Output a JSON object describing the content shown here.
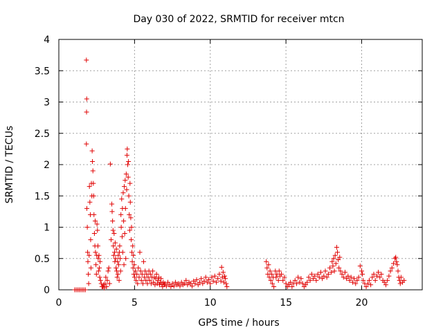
{
  "chart_data": {
    "type": "scatter",
    "title": "Day 030 of 2022, SRMTID for receiver mtcn",
    "xlabel": "GPS time / hours",
    "ylabel": "SRMTID / TECUs",
    "xlim": [
      0,
      24
    ],
    "ylim": [
      0,
      4
    ],
    "xticks": [
      0,
      5,
      10,
      15,
      20
    ],
    "xtick_labels": [
      "0",
      "5",
      "10",
      "15",
      "20"
    ],
    "yticks": [
      0,
      0.5,
      1,
      1.5,
      2,
      2.5,
      3,
      3.5,
      4
    ],
    "ytick_labels": [
      "0",
      "0.5",
      "1",
      "1.5",
      "2",
      "2.5",
      "3",
      "3.5",
      "4"
    ],
    "grid": true,
    "marker": "plus",
    "color": "#e00000",
    "series": [
      {
        "name": "mtcn",
        "points": [
          [
            1.05,
            0.0
          ],
          [
            1.15,
            0.0
          ],
          [
            1.25,
            0.0
          ],
          [
            1.35,
            0.0
          ],
          [
            1.45,
            0.0
          ],
          [
            1.55,
            0.0
          ],
          [
            1.65,
            0.0
          ],
          [
            1.75,
            0.0
          ],
          [
            1.82,
            3.67
          ],
          [
            1.84,
            3.05
          ],
          [
            1.83,
            2.84
          ],
          [
            1.82,
            2.33
          ],
          [
            1.85,
            1.3
          ],
          [
            1.88,
            1.0
          ],
          [
            1.9,
            0.6
          ],
          [
            1.92,
            0.45
          ],
          [
            1.95,
            0.25
          ],
          [
            1.97,
            0.1
          ],
          [
            2.0,
            0.55
          ],
          [
            2.02,
            1.65
          ],
          [
            2.05,
            1.4
          ],
          [
            2.08,
            1.2
          ],
          [
            2.1,
            0.8
          ],
          [
            2.12,
            0.35
          ],
          [
            2.15,
            1.7
          ],
          [
            2.18,
            1.5
          ],
          [
            2.2,
            2.22
          ],
          [
            2.22,
            2.05
          ],
          [
            2.25,
            1.9
          ],
          [
            2.28,
            1.7
          ],
          [
            2.3,
            1.5
          ],
          [
            2.32,
            1.2
          ],
          [
            2.35,
            0.9
          ],
          [
            2.38,
            0.7
          ],
          [
            2.4,
            1.1
          ],
          [
            2.42,
            0.6
          ],
          [
            2.45,
            0.4
          ],
          [
            2.48,
            0.25
          ],
          [
            2.5,
            0.55
          ],
          [
            2.52,
            1.05
          ],
          [
            2.55,
            0.95
          ],
          [
            2.58,
            0.7
          ],
          [
            2.6,
            0.5
          ],
          [
            2.62,
            0.3
          ],
          [
            2.65,
            0.55
          ],
          [
            2.68,
            0.35
          ],
          [
            2.7,
            0.2
          ],
          [
            2.72,
            0.45
          ],
          [
            2.75,
            0.15
          ],
          [
            2.8,
            0.1
          ],
          [
            2.85,
            0.05
          ],
          [
            2.9,
            0.05
          ],
          [
            2.95,
            0.08
          ],
          [
            3.0,
            0.03
          ],
          [
            3.05,
            0.1
          ],
          [
            3.1,
            0.2
          ],
          [
            3.15,
            0.05
          ],
          [
            3.2,
            0.15
          ],
          [
            3.25,
            0.3
          ],
          [
            3.3,
            0.35
          ],
          [
            3.35,
            0.1
          ],
          [
            3.4,
            2.01
          ],
          [
            3.45,
            0.8
          ],
          [
            3.5,
            1.37
          ],
          [
            3.52,
            1.25
          ],
          [
            3.55,
            1.1
          ],
          [
            3.58,
            0.95
          ],
          [
            3.6,
            0.7
          ],
          [
            3.62,
            0.55
          ],
          [
            3.65,
            0.9
          ],
          [
            3.68,
            0.6
          ],
          [
            3.7,
            0.45
          ],
          [
            3.72,
            0.75
          ],
          [
            3.75,
            0.5
          ],
          [
            3.78,
            0.35
          ],
          [
            3.8,
            0.65
          ],
          [
            3.82,
            0.3
          ],
          [
            3.85,
            0.2
          ],
          [
            3.88,
            0.45
          ],
          [
            3.9,
            0.25
          ],
          [
            3.92,
            0.55
          ],
          [
            3.95,
            0.4
          ],
          [
            3.98,
            0.15
          ],
          [
            4.0,
            0.6
          ],
          [
            4.02,
            0.7
          ],
          [
            4.05,
            0.5
          ],
          [
            4.08,
            0.3
          ],
          [
            4.1,
            1.2
          ],
          [
            4.12,
            1.0
          ],
          [
            4.15,
            1.45
          ],
          [
            4.18,
            0.85
          ],
          [
            4.2,
            1.3
          ],
          [
            4.22,
            0.6
          ],
          [
            4.25,
            1.55
          ],
          [
            4.28,
            1.1
          ],
          [
            4.3,
            0.4
          ],
          [
            4.32,
            1.65
          ],
          [
            4.35,
            0.9
          ],
          [
            4.38,
            1.75
          ],
          [
            4.4,
            1.3
          ],
          [
            4.42,
            0.5
          ],
          [
            4.45,
            1.85
          ],
          [
            4.48,
            1.6
          ],
          [
            4.5,
            2.15
          ],
          [
            4.52,
            2.25
          ],
          [
            4.55,
            2.0
          ],
          [
            4.58,
            1.8
          ],
          [
            4.6,
            2.05
          ],
          [
            4.62,
            1.5
          ],
          [
            4.65,
            1.2
          ],
          [
            4.68,
            0.95
          ],
          [
            4.7,
            1.7
          ],
          [
            4.72,
            1.4
          ],
          [
            4.75,
            1.15
          ],
          [
            4.78,
            0.8
          ],
          [
            4.8,
            1.0
          ],
          [
            4.82,
            0.6
          ],
          [
            4.85,
            0.45
          ],
          [
            4.88,
            0.7
          ],
          [
            4.9,
            0.35
          ],
          [
            4.92,
            0.55
          ],
          [
            4.95,
            0.25
          ],
          [
            4.98,
            0.4
          ],
          [
            5.0,
            0.2
          ],
          [
            5.05,
            0.3
          ],
          [
            5.1,
            0.15
          ],
          [
            5.15,
            0.25
          ],
          [
            5.2,
            0.1
          ],
          [
            5.25,
            0.35
          ],
          [
            5.3,
            0.2
          ],
          [
            5.35,
            0.6
          ],
          [
            5.4,
            0.3
          ],
          [
            5.45,
            0.15
          ],
          [
            5.5,
            0.25
          ],
          [
            5.55,
            0.1
          ],
          [
            5.6,
            0.45
          ],
          [
            5.65,
            0.2
          ],
          [
            5.7,
            0.3
          ],
          [
            5.75,
            0.15
          ],
          [
            5.8,
            0.25
          ],
          [
            5.85,
            0.1
          ],
          [
            5.9,
            0.2
          ],
          [
            5.95,
            0.3
          ],
          [
            6.0,
            0.15
          ],
          [
            6.05,
            0.25
          ],
          [
            6.1,
            0.1
          ],
          [
            6.15,
            0.2
          ],
          [
            6.2,
            0.3
          ],
          [
            6.25,
            0.12
          ],
          [
            6.3,
            0.2
          ],
          [
            6.35,
            0.08
          ],
          [
            6.4,
            0.18
          ],
          [
            6.45,
            0.25
          ],
          [
            6.5,
            0.1
          ],
          [
            6.55,
            0.15
          ],
          [
            6.6,
            0.2
          ],
          [
            6.65,
            0.08
          ],
          [
            6.7,
            0.12
          ],
          [
            6.75,
            0.18
          ],
          [
            6.8,
            0.1
          ],
          [
            6.85,
            0.05
          ],
          [
            6.9,
            0.12
          ],
          [
            6.95,
            0.08
          ],
          [
            7.0,
            0.1
          ],
          [
            7.1,
            0.06
          ],
          [
            7.2,
            0.12
          ],
          [
            7.3,
            0.08
          ],
          [
            7.4,
            0.05
          ],
          [
            7.5,
            0.1
          ],
          [
            7.6,
            0.06
          ],
          [
            7.7,
            0.12
          ],
          [
            7.8,
            0.08
          ],
          [
            7.9,
            0.1
          ],
          [
            8.0,
            0.06
          ],
          [
            8.1,
            0.12
          ],
          [
            8.2,
            0.08
          ],
          [
            8.3,
            0.1
          ],
          [
            8.4,
            0.15
          ],
          [
            8.5,
            0.08
          ],
          [
            8.6,
            0.12
          ],
          [
            8.7,
            0.1
          ],
          [
            8.8,
            0.06
          ],
          [
            8.9,
            0.14
          ],
          [
            9.0,
            0.1
          ],
          [
            9.1,
            0.16
          ],
          [
            9.2,
            0.08
          ],
          [
            9.3,
            0.12
          ],
          [
            9.4,
            0.18
          ],
          [
            9.5,
            0.1
          ],
          [
            9.6,
            0.14
          ],
          [
            9.7,
            0.2
          ],
          [
            9.8,
            0.12
          ],
          [
            9.9,
            0.16
          ],
          [
            10.0,
            0.1
          ],
          [
            10.1,
            0.2
          ],
          [
            10.2,
            0.14
          ],
          [
            10.3,
            0.22
          ],
          [
            10.4,
            0.12
          ],
          [
            10.5,
            0.18
          ],
          [
            10.6,
            0.25
          ],
          [
            10.7,
            0.14
          ],
          [
            10.75,
            0.36
          ],
          [
            10.8,
            0.2
          ],
          [
            10.85,
            0.28
          ],
          [
            10.9,
            0.12
          ],
          [
            10.95,
            0.22
          ],
          [
            11.0,
            0.18
          ],
          [
            11.05,
            0.1
          ],
          [
            11.1,
            0.05
          ],
          [
            13.7,
            0.45
          ],
          [
            13.75,
            0.35
          ],
          [
            13.8,
            0.25
          ],
          [
            13.85,
            0.4
          ],
          [
            13.9,
            0.2
          ],
          [
            13.95,
            0.3
          ],
          [
            14.0,
            0.15
          ],
          [
            14.05,
            0.25
          ],
          [
            14.1,
            0.1
          ],
          [
            14.15,
            0.2
          ],
          [
            14.2,
            0.05
          ],
          [
            14.3,
            0.3
          ],
          [
            14.35,
            0.2
          ],
          [
            14.4,
            0.25
          ],
          [
            14.5,
            0.15
          ],
          [
            14.55,
            0.3
          ],
          [
            14.6,
            0.22
          ],
          [
            14.7,
            0.25
          ],
          [
            14.8,
            0.15
          ],
          [
            14.9,
            0.2
          ],
          [
            15.0,
            0.1
          ],
          [
            15.1,
            0.05
          ],
          [
            15.2,
            0.08
          ],
          [
            15.3,
            0.12
          ],
          [
            15.4,
            0.05
          ],
          [
            15.5,
            0.1
          ],
          [
            15.6,
            0.15
          ],
          [
            15.7,
            0.1
          ],
          [
            15.8,
            0.2
          ],
          [
            15.9,
            0.12
          ],
          [
            16.0,
            0.18
          ],
          [
            16.1,
            0.1
          ],
          [
            16.2,
            0.05
          ],
          [
            16.3,
            0.08
          ],
          [
            16.4,
            0.12
          ],
          [
            16.5,
            0.2
          ],
          [
            16.6,
            0.15
          ],
          [
            16.7,
            0.25
          ],
          [
            16.8,
            0.18
          ],
          [
            16.9,
            0.22
          ],
          [
            17.0,
            0.15
          ],
          [
            17.1,
            0.25
          ],
          [
            17.2,
            0.2
          ],
          [
            17.3,
            0.28
          ],
          [
            17.4,
            0.18
          ],
          [
            17.5,
            0.22
          ],
          [
            17.6,
            0.3
          ],
          [
            17.7,
            0.2
          ],
          [
            17.8,
            0.25
          ],
          [
            17.9,
            0.35
          ],
          [
            18.0,
            0.28
          ],
          [
            18.05,
            0.45
          ],
          [
            18.1,
            0.38
          ],
          [
            18.15,
            0.5
          ],
          [
            18.2,
            0.3
          ],
          [
            18.25,
            0.55
          ],
          [
            18.3,
            0.42
          ],
          [
            18.35,
            0.68
          ],
          [
            18.4,
            0.6
          ],
          [
            18.45,
            0.48
          ],
          [
            18.5,
            0.35
          ],
          [
            18.55,
            0.52
          ],
          [
            18.6,
            0.3
          ],
          [
            18.7,
            0.25
          ],
          [
            18.8,
            0.2
          ],
          [
            18.9,
            0.28
          ],
          [
            19.0,
            0.18
          ],
          [
            19.1,
            0.22
          ],
          [
            19.2,
            0.15
          ],
          [
            19.3,
            0.2
          ],
          [
            19.4,
            0.12
          ],
          [
            19.5,
            0.18
          ],
          [
            19.6,
            0.1
          ],
          [
            19.7,
            0.15
          ],
          [
            19.8,
            0.2
          ],
          [
            19.9,
            0.38
          ],
          [
            20.0,
            0.3
          ],
          [
            20.05,
            0.25
          ],
          [
            20.1,
            0.15
          ],
          [
            20.2,
            0.1
          ],
          [
            20.3,
            0.05
          ],
          [
            20.4,
            0.1
          ],
          [
            20.5,
            0.15
          ],
          [
            20.6,
            0.08
          ],
          [
            20.7,
            0.2
          ],
          [
            20.8,
            0.25
          ],
          [
            20.9,
            0.15
          ],
          [
            21.0,
            0.22
          ],
          [
            21.1,
            0.28
          ],
          [
            21.2,
            0.2
          ],
          [
            21.3,
            0.25
          ],
          [
            21.4,
            0.15
          ],
          [
            21.5,
            0.12
          ],
          [
            21.6,
            0.08
          ],
          [
            21.7,
            0.15
          ],
          [
            21.8,
            0.22
          ],
          [
            21.9,
            0.3
          ],
          [
            22.0,
            0.35
          ],
          [
            22.1,
            0.42
          ],
          [
            22.2,
            0.5
          ],
          [
            22.25,
            0.52
          ],
          [
            22.3,
            0.45
          ],
          [
            22.35,
            0.4
          ],
          [
            22.4,
            0.3
          ],
          [
            22.45,
            0.2
          ],
          [
            22.5,
            0.15
          ],
          [
            22.55,
            0.1
          ],
          [
            22.6,
            0.2
          ],
          [
            22.7,
            0.12
          ],
          [
            22.8,
            0.15
          ]
        ]
      }
    ]
  }
}
